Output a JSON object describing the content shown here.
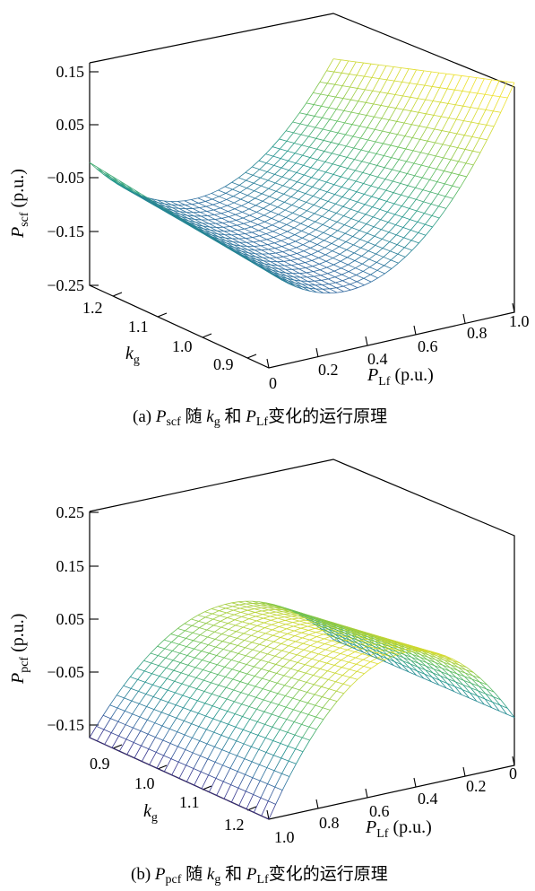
{
  "charts": [
    {
      "id": "a",
      "type": "surface",
      "z_ticks": [
        "0.15",
        "0.05",
        "−0.05",
        "−0.15",
        "−0.25"
      ],
      "z_range": [
        -0.25,
        0.15
      ],
      "kg_ticks": [
        "1.2",
        "1.1",
        "1.0",
        "0.9"
      ],
      "pl_ticks": [
        "0",
        "0.2",
        "0.4",
        "0.6",
        "0.8",
        "1.0"
      ],
      "z_label": {
        "main": "P",
        "sub": "scf",
        "unit": " (p.u.)"
      },
      "kg_label": {
        "main": "k",
        "sub": "g"
      },
      "pl_label": {
        "main": "P",
        "sub": "Lf",
        "unit": " (p.u.)"
      },
      "caption": {
        "prefix": "(a)  ",
        "sym": "P",
        "sym_sub": "scf",
        "mid1": " 随 ",
        "k": "k",
        "k_sub": "g",
        "mid2": " 和 ",
        "p": "P",
        "p_sub": "Lf",
        "tail": "变化的运行原理"
      },
      "surface": {
        "kg": [
          0.85,
          1.25
        ],
        "pl": [
          0,
          1
        ],
        "colormap": "viridis-like"
      }
    },
    {
      "id": "b",
      "type": "surface",
      "z_ticks": [
        "0.25",
        "0.15",
        "0.05",
        "−0.05",
        "−0.15"
      ],
      "z_range": [
        -0.15,
        0.25
      ],
      "kg_ticks": [
        "0.9",
        "1.0",
        "1.1",
        "1.2"
      ],
      "pl_ticks": [
        "1.0",
        "0.8",
        "0.6",
        "0.4",
        "0.2",
        "0"
      ],
      "z_label": {
        "main": "P",
        "sub": "pcf",
        "unit": " (p.u.)"
      },
      "kg_label": {
        "main": "k",
        "sub": "g"
      },
      "pl_label": {
        "main": "P",
        "sub": "Lf",
        "unit": " (p.u.)"
      },
      "caption": {
        "prefix": "(b)  ",
        "sym": "P",
        "sym_sub": "pcf",
        "mid1": " 随 ",
        "k": "k",
        "k_sub": "g",
        "mid2": " 和 ",
        "p": "P",
        "p_sub": "Lf",
        "tail": "变化的运行原理"
      },
      "surface": {
        "kg": [
          0.85,
          1.25
        ],
        "pl": [
          0,
          1
        ],
        "colormap": "viridis-like"
      }
    }
  ]
}
